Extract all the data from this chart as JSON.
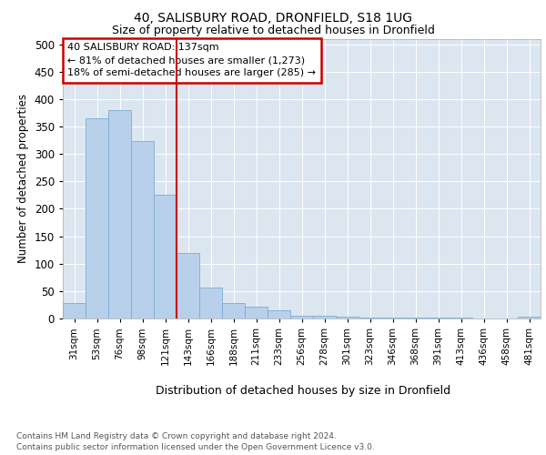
{
  "title1": "40, SALISBURY ROAD, DRONFIELD, S18 1UG",
  "title2": "Size of property relative to detached houses in Dronfield",
  "xlabel": "Distribution of detached houses by size in Dronfield",
  "ylabel": "Number of detached properties",
  "categories": [
    "31sqm",
    "53sqm",
    "76sqm",
    "98sqm",
    "121sqm",
    "143sqm",
    "166sqm",
    "188sqm",
    "211sqm",
    "233sqm",
    "256sqm",
    "278sqm",
    "301sqm",
    "323sqm",
    "346sqm",
    "368sqm",
    "391sqm",
    "413sqm",
    "436sqm",
    "458sqm",
    "481sqm"
  ],
  "values": [
    28,
    365,
    380,
    323,
    225,
    120,
    57,
    28,
    22,
    15,
    5,
    5,
    3,
    2,
    1,
    1,
    1,
    1,
    0,
    0,
    3
  ],
  "bar_color": "#b8d0ea",
  "bar_edge_color": "#7aadd4",
  "annotation_line1": "40 SALISBURY ROAD: 137sqm",
  "annotation_line2": "← 81% of detached houses are smaller (1,273)",
  "annotation_line3": "18% of semi-detached houses are larger (285) →",
  "annotation_box_facecolor": "#ffffff",
  "annotation_box_edgecolor": "#cc0000",
  "vline_color": "#cc0000",
  "vline_x_index": 5,
  "ylim": [
    0,
    510
  ],
  "yticks": [
    0,
    50,
    100,
    150,
    200,
    250,
    300,
    350,
    400,
    450,
    500
  ],
  "bg_color": "#dce6f0",
  "footer1": "Contains HM Land Registry data © Crown copyright and database right 2024.",
  "footer2": "Contains public sector information licensed under the Open Government Licence v3.0."
}
